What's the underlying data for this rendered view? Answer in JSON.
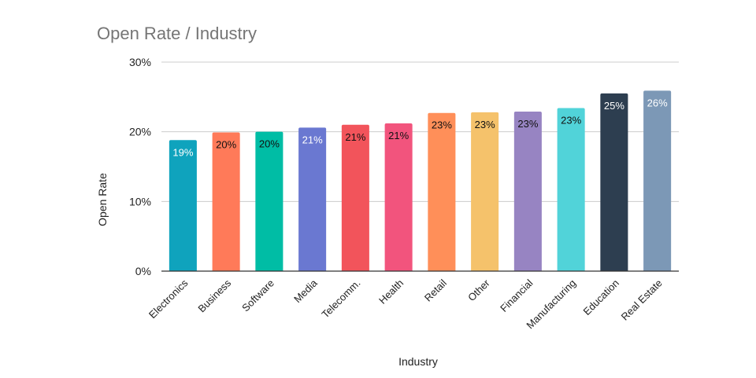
{
  "chart_data": {
    "type": "bar",
    "title": "Open Rate / Industry",
    "xlabel": "Industry",
    "ylabel": "Open Rate",
    "ylim": [
      0,
      30
    ],
    "yticks": [
      0,
      10,
      20,
      30
    ],
    "ytick_labels": [
      "0%",
      "10%",
      "20%",
      "30%"
    ],
    "grid": true,
    "legend": "none",
    "categories": [
      "Electronics",
      "Business",
      "Software",
      "Media",
      "Telecomm.",
      "Health",
      "Retail",
      "Other",
      "Financial",
      "Manufacturing",
      "Education",
      "Real Estate"
    ],
    "values": [
      18.8,
      19.9,
      20.0,
      20.6,
      21.0,
      21.2,
      22.7,
      22.8,
      22.9,
      23.4,
      25.5,
      25.9
    ],
    "data_labels": [
      "19%",
      "20%",
      "20%",
      "21%",
      "21%",
      "21%",
      "23%",
      "23%",
      "23%",
      "23%",
      "25%",
      "26%"
    ],
    "colors": [
      "#0fa3bd",
      "#ff7a59",
      "#00bda5",
      "#6a78d1",
      "#f2545b",
      "#f2547d",
      "#ff8f59",
      "#f5c26b",
      "#9784c2",
      "#51d3d9",
      "#2d3e50",
      "#7c98b6"
    ],
    "label_colors": [
      "#ffffff",
      "#111111",
      "#111111",
      "#ffffff",
      "#111111",
      "#111111",
      "#111111",
      "#111111",
      "#111111",
      "#111111",
      "#ffffff",
      "#ffffff"
    ]
  }
}
